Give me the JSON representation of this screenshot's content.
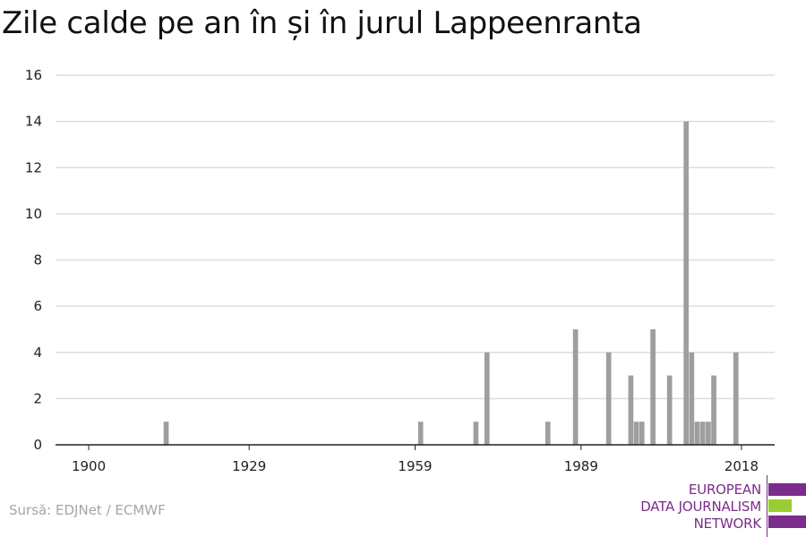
{
  "title": "Zile calde pe an în și în jurul Lappeenranta",
  "source": "Sursă: EDJNet / ECMWF",
  "logo": {
    "line1": "EUROPEAN",
    "line2": "DATA JOURNALISM",
    "line3": "NETWORK",
    "colors": {
      "purple": "#7b2d8b",
      "green": "#9acd32"
    }
  },
  "colors": {
    "bar": "#9e9e9e",
    "grid": "#dddddd",
    "axis": "#222222"
  },
  "chart_data": {
    "type": "bar",
    "xlabel": "",
    "ylabel": "",
    "xlim": [
      1894,
      2024
    ],
    "ylim": [
      0,
      16
    ],
    "yticks": [
      0,
      2,
      4,
      6,
      8,
      10,
      12,
      14,
      16
    ],
    "xticks": [
      1900,
      1929,
      1959,
      1989,
      2018
    ],
    "grid": true,
    "x": [
      1914,
      1960,
      1970,
      1972,
      1983,
      1988,
      1994,
      1998,
      1999,
      2000,
      2002,
      2005,
      2008,
      2009,
      2010,
      2011,
      2012,
      2013,
      2017
    ],
    "values": [
      1,
      1,
      1,
      4,
      1,
      5,
      4,
      3,
      1,
      1,
      5,
      3,
      14,
      4,
      1,
      1,
      1,
      3,
      4
    ]
  }
}
